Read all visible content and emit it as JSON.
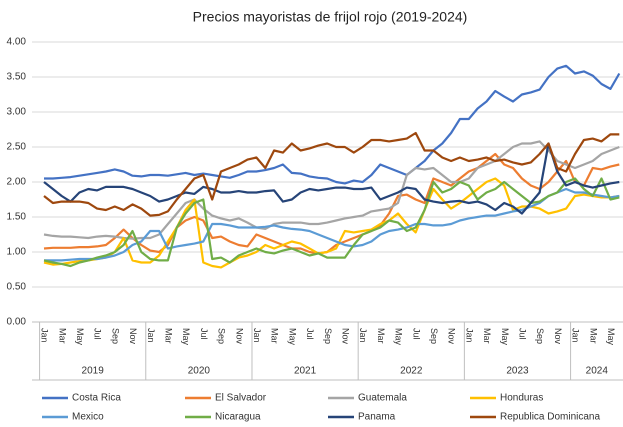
{
  "chart_data": {
    "type": "line",
    "title": "Precios mayoristas de frijol rojo (2019-2024)",
    "categories": [
      "Jan",
      null,
      "Mar",
      null,
      "May",
      null,
      "Jul",
      null,
      "Sep",
      null,
      "Nov",
      null,
      "Jan",
      null,
      "Mar",
      null,
      "May",
      null,
      "Jul",
      null,
      "Sep",
      null,
      "Nov",
      null,
      "Jan",
      null,
      "Mar",
      null,
      "May",
      null,
      "Jul",
      null,
      "Sep",
      null,
      "Nov",
      null,
      "Jan",
      null,
      "Mar",
      null,
      "May",
      null,
      "Jul",
      null,
      "Sep",
      null,
      "Nov",
      null,
      "Jan",
      null,
      "Mar",
      null,
      "May",
      null,
      "Jul",
      null,
      "Sep",
      null,
      "Nov",
      null,
      "Jan",
      null,
      "Mar",
      null,
      "May",
      null
    ],
    "year_groups": [
      "2019",
      "2020",
      "2021",
      "2022",
      "2023",
      "2024"
    ],
    "ylim": [
      0,
      4
    ],
    "yticks": [
      {
        "value": 0,
        "label": "0.00"
      },
      {
        "value": 0.5,
        "label": "0.50"
      },
      {
        "value": 1,
        "label": "1.00"
      },
      {
        "value": 1.5,
        "label": "1.50"
      },
      {
        "value": 2,
        "label": "2.00"
      },
      {
        "value": 2.5,
        "label": "2.50"
      },
      {
        "value": 3,
        "label": "3.00"
      },
      {
        "value": 3.5,
        "label": "3.50"
      },
      {
        "value": 4,
        "label": "4.00"
      }
    ],
    "grid": true,
    "legend": "bottom",
    "series": [
      {
        "name": "Costa Rica",
        "color": "#4472c4",
        "values": [
          2.05,
          2.05,
          2.06,
          2.07,
          2.09,
          2.11,
          2.13,
          2.15,
          2.18,
          2.15,
          2.09,
          2.08,
          2.1,
          2.1,
          2.09,
          2.11,
          2.13,
          2.1,
          2.12,
          2.1,
          2.08,
          2.06,
          2.1,
          2.15,
          2.15,
          2.17,
          2.2,
          2.25,
          2.13,
          2.12,
          2.08,
          2.06,
          2.05,
          2.0,
          1.98,
          2.02,
          2.0,
          2.1,
          2.25,
          2.2,
          2.15,
          2.1,
          2.2,
          2.3,
          2.45,
          2.55,
          2.7,
          2.9,
          2.9,
          3.05,
          3.15,
          3.3,
          3.22,
          3.15,
          3.25,
          3.28,
          3.32,
          3.5,
          3.62,
          3.66,
          3.55,
          3.58,
          3.52,
          3.4,
          3.33,
          3.55
        ]
      },
      {
        "name": "El Salvador",
        "color": "#ed7d31",
        "values": [
          1.05,
          1.06,
          1.06,
          1.06,
          1.07,
          1.07,
          1.08,
          1.1,
          1.2,
          1.32,
          1.2,
          1.1,
          1.02,
          1.0,
          1.1,
          1.35,
          1.45,
          1.5,
          1.45,
          1.2,
          1.22,
          1.15,
          1.1,
          1.08,
          1.25,
          1.2,
          1.15,
          1.1,
          1.05,
          1.05,
          1.0,
          0.98,
          1.0,
          1.1,
          1.15,
          1.2,
          1.25,
          1.3,
          1.38,
          1.55,
          1.8,
          1.82,
          1.75,
          1.7,
          2.05,
          2.0,
          1.95,
          2.05,
          2.15,
          2.2,
          2.3,
          2.4,
          2.25,
          2.2,
          2.05,
          1.95,
          1.9,
          2.0,
          2.15,
          2.3,
          2.0,
          1.95,
          2.2,
          2.18,
          2.22,
          2.25
        ]
      },
      {
        "name": "Guatemala",
        "color": "#a5a5a5",
        "values": [
          1.25,
          1.23,
          1.22,
          1.22,
          1.21,
          1.2,
          1.22,
          1.23,
          1.22,
          1.2,
          1.19,
          1.2,
          1.2,
          1.25,
          1.4,
          1.55,
          1.7,
          1.75,
          1.62,
          1.52,
          1.48,
          1.45,
          1.48,
          1.42,
          1.35,
          1.33,
          1.4,
          1.42,
          1.42,
          1.42,
          1.4,
          1.4,
          1.42,
          1.45,
          1.48,
          1.5,
          1.52,
          1.58,
          1.6,
          1.62,
          1.7,
          2.1,
          2.2,
          2.18,
          2.2,
          2.1,
          2.0,
          2.0,
          2.05,
          2.2,
          2.25,
          2.3,
          2.4,
          2.5,
          2.55,
          2.55,
          2.58,
          2.45,
          2.3,
          2.25,
          2.2,
          2.25,
          2.3,
          2.4,
          2.45,
          2.5
        ]
      },
      {
        "name": "Honduras",
        "color": "#ffc000",
        "values": [
          0.85,
          0.82,
          0.83,
          0.85,
          0.87,
          0.88,
          0.9,
          0.92,
          1.0,
          1.2,
          0.88,
          0.85,
          0.85,
          0.95,
          1.15,
          1.35,
          1.6,
          1.75,
          0.85,
          0.8,
          0.78,
          0.85,
          0.92,
          0.95,
          1.0,
          1.1,
          1.05,
          1.1,
          1.15,
          1.12,
          1.05,
          0.98,
          1.0,
          1.05,
          1.3,
          1.28,
          1.3,
          1.32,
          1.4,
          1.45,
          1.55,
          1.4,
          1.28,
          1.6,
          1.9,
          1.75,
          1.62,
          1.7,
          1.8,
          1.9,
          2.0,
          2.05,
          1.95,
          1.6,
          1.65,
          1.65,
          1.62,
          1.55,
          1.58,
          1.62,
          1.8,
          1.82,
          1.8,
          1.78,
          1.78,
          1.8
        ]
      },
      {
        "name": "Mexico",
        "color": "#5b9bd5",
        "values": [
          0.88,
          0.88,
          0.88,
          0.89,
          0.9,
          0.9,
          0.9,
          0.92,
          0.95,
          1.0,
          1.1,
          1.15,
          1.3,
          1.3,
          1.05,
          1.08,
          1.1,
          1.12,
          1.15,
          1.4,
          1.4,
          1.38,
          1.35,
          1.35,
          1.35,
          1.36,
          1.38,
          1.35,
          1.33,
          1.32,
          1.3,
          1.25,
          1.2,
          1.15,
          1.1,
          1.08,
          1.1,
          1.15,
          1.25,
          1.3,
          1.32,
          1.35,
          1.4,
          1.4,
          1.38,
          1.38,
          1.4,
          1.45,
          1.48,
          1.5,
          1.52,
          1.52,
          1.55,
          1.58,
          1.6,
          1.65,
          1.7,
          1.8,
          1.85,
          1.9,
          1.85,
          1.85,
          1.82,
          1.8,
          1.78,
          1.8
        ]
      },
      {
        "name": "Nicaragua",
        "color": "#70ad47",
        "values": [
          0.88,
          0.85,
          0.83,
          0.8,
          0.85,
          0.88,
          0.92,
          0.95,
          1.0,
          1.1,
          1.3,
          1.0,
          0.9,
          0.88,
          0.88,
          1.35,
          1.55,
          1.7,
          1.75,
          0.9,
          0.92,
          0.85,
          0.95,
          1.0,
          1.05,
          1.0,
          0.98,
          1.02,
          1.05,
          1.0,
          0.95,
          0.98,
          0.92,
          0.92,
          0.92,
          1.1,
          1.25,
          1.3,
          1.35,
          1.45,
          1.42,
          1.3,
          1.35,
          1.6,
          2.0,
          1.85,
          1.9,
          2.0,
          1.95,
          1.75,
          1.85,
          1.9,
          2.0,
          1.9,
          1.8,
          1.7,
          1.72,
          1.8,
          1.85,
          2.0,
          2.05,
          1.9,
          1.8,
          2.05,
          1.75,
          1.78
        ]
      },
      {
        "name": "Panama",
        "color": "#264478",
        "values": [
          2.0,
          1.9,
          1.8,
          1.72,
          1.85,
          1.9,
          1.88,
          1.93,
          1.93,
          1.93,
          1.9,
          1.85,
          1.8,
          1.72,
          1.75,
          1.8,
          1.85,
          1.83,
          1.93,
          1.9,
          1.85,
          1.85,
          1.87,
          1.85,
          1.85,
          1.87,
          1.88,
          1.72,
          1.75,
          1.85,
          1.9,
          1.88,
          1.9,
          1.92,
          1.92,
          1.9,
          1.9,
          1.92,
          1.75,
          1.8,
          1.85,
          1.92,
          1.9,
          1.75,
          1.72,
          1.7,
          1.72,
          1.73,
          1.7,
          1.72,
          1.68,
          1.6,
          1.7,
          1.65,
          1.55,
          1.7,
          1.85,
          2.55,
          2.15,
          1.95,
          2.0,
          1.95,
          1.92,
          1.95,
          1.98,
          2.0
        ]
      },
      {
        "name": "Republica Dominicana",
        "color": "#9e480e",
        "values": [
          1.8,
          1.7,
          1.72,
          1.72,
          1.72,
          1.7,
          1.62,
          1.6,
          1.65,
          1.6,
          1.68,
          1.62,
          1.52,
          1.53,
          1.58,
          1.75,
          1.9,
          2.05,
          2.1,
          1.75,
          2.15,
          2.2,
          2.25,
          2.32,
          2.35,
          2.2,
          2.45,
          2.42,
          2.55,
          2.45,
          2.48,
          2.52,
          2.55,
          2.5,
          2.5,
          2.42,
          2.5,
          2.6,
          2.6,
          2.58,
          2.6,
          2.62,
          2.7,
          2.45,
          2.45,
          2.35,
          2.3,
          2.35,
          2.3,
          2.32,
          2.35,
          2.3,
          2.32,
          2.28,
          2.25,
          2.28,
          2.4,
          2.55,
          2.2,
          2.15,
          2.4,
          2.6,
          2.62,
          2.58,
          2.68,
          2.68
        ]
      }
    ]
  }
}
